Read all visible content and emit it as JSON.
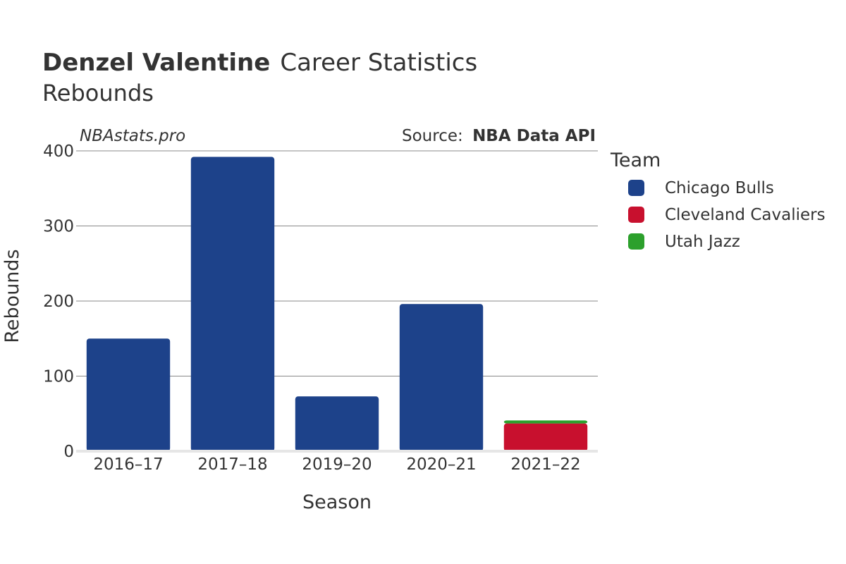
{
  "chart_data": {
    "type": "bar",
    "stacked": true,
    "title_bold": "Denzel Valentine",
    "title_rest": "Career Statistics",
    "subtitle": "Rebounds",
    "watermark": "NBAstats.pro",
    "source_prefix": "Source:",
    "source_name": "NBA Data API",
    "xlabel": "Season",
    "ylabel": "Rebounds",
    "categories": [
      "2016–17",
      "2017–18",
      "2019–20",
      "2020–21",
      "2021–22"
    ],
    "ylim": [
      0,
      400
    ],
    "yticks": [
      0,
      100,
      200,
      300,
      400
    ],
    "grid": true,
    "legend_title": "Team",
    "legend_position": "right",
    "series": [
      {
        "name": "Chicago Bulls",
        "color": "#1d428a",
        "values": [
          150,
          392,
          73,
          196,
          0
        ]
      },
      {
        "name": "Cleveland Cavaliers",
        "color": "#c8102e",
        "values": [
          0,
          0,
          0,
          0,
          37
        ]
      },
      {
        "name": "Utah Jazz",
        "color": "#2ca02c",
        "values": [
          0,
          0,
          0,
          0,
          4
        ]
      }
    ]
  }
}
